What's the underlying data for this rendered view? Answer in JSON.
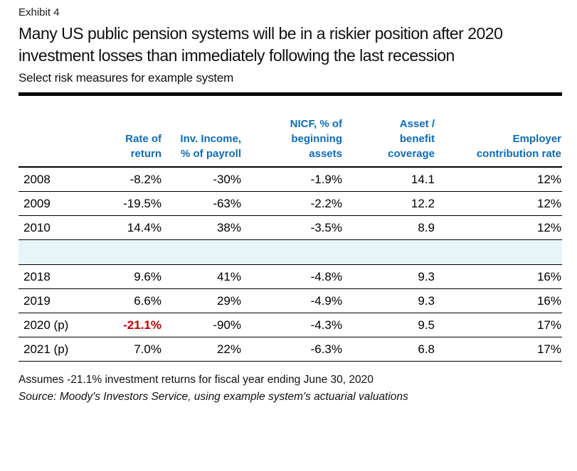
{
  "exhibit_label": "Exhibit 4",
  "title": "Many US public pension systems will be in a riskier position after 2020 investment losses than immediately following the last recession",
  "subtitle": "Select risk measures for example system",
  "colors": {
    "header_blue": "#0e6cb6",
    "highlight_red": "#c00000",
    "band_blue": "#e8f5f8"
  },
  "table": {
    "headers": {
      "year": "",
      "rate": "Rate of\nreturn",
      "income": "Inv. Income,\n% of payroll",
      "nicf": "NICF, % of\nbeginning\nassets",
      "coverage": "Asset /\nbenefit\ncoverage",
      "contribution": "Employer\ncontribution rate"
    },
    "rows": [
      {
        "year": "2008",
        "rate": "-8.2%",
        "income": "-30%",
        "nicf": "-1.9%",
        "coverage": "14.1",
        "contribution": "12%"
      },
      {
        "year": "2009",
        "rate": "-19.5%",
        "income": "-63%",
        "nicf": "-2.2%",
        "coverage": "12.2",
        "contribution": "12%"
      },
      {
        "year": "2010",
        "rate": "14.4%",
        "income": "38%",
        "nicf": "-3.5%",
        "coverage": "8.9",
        "contribution": "12%"
      },
      {
        "year": "2018",
        "rate": "9.6%",
        "income": "41%",
        "nicf": "-4.8%",
        "coverage": "9.3",
        "contribution": "16%"
      },
      {
        "year": "2019",
        "rate": "6.6%",
        "income": "29%",
        "nicf": "-4.9%",
        "coverage": "9.3",
        "contribution": "16%"
      },
      {
        "year": "2020 (p)",
        "rate": "-21.1%",
        "income": "-90%",
        "nicf": "-4.3%",
        "coverage": "9.5",
        "contribution": "17%"
      },
      {
        "year": "2021 (p)",
        "rate": "7.0%",
        "income": "22%",
        "nicf": "-6.3%",
        "coverage": "6.8",
        "contribution": "17%"
      }
    ]
  },
  "footnote": "Assumes -21.1% investment returns for fiscal year ending June 30, 2020",
  "source": "Source: Moody's Investors Service, using example system's actuarial valuations"
}
